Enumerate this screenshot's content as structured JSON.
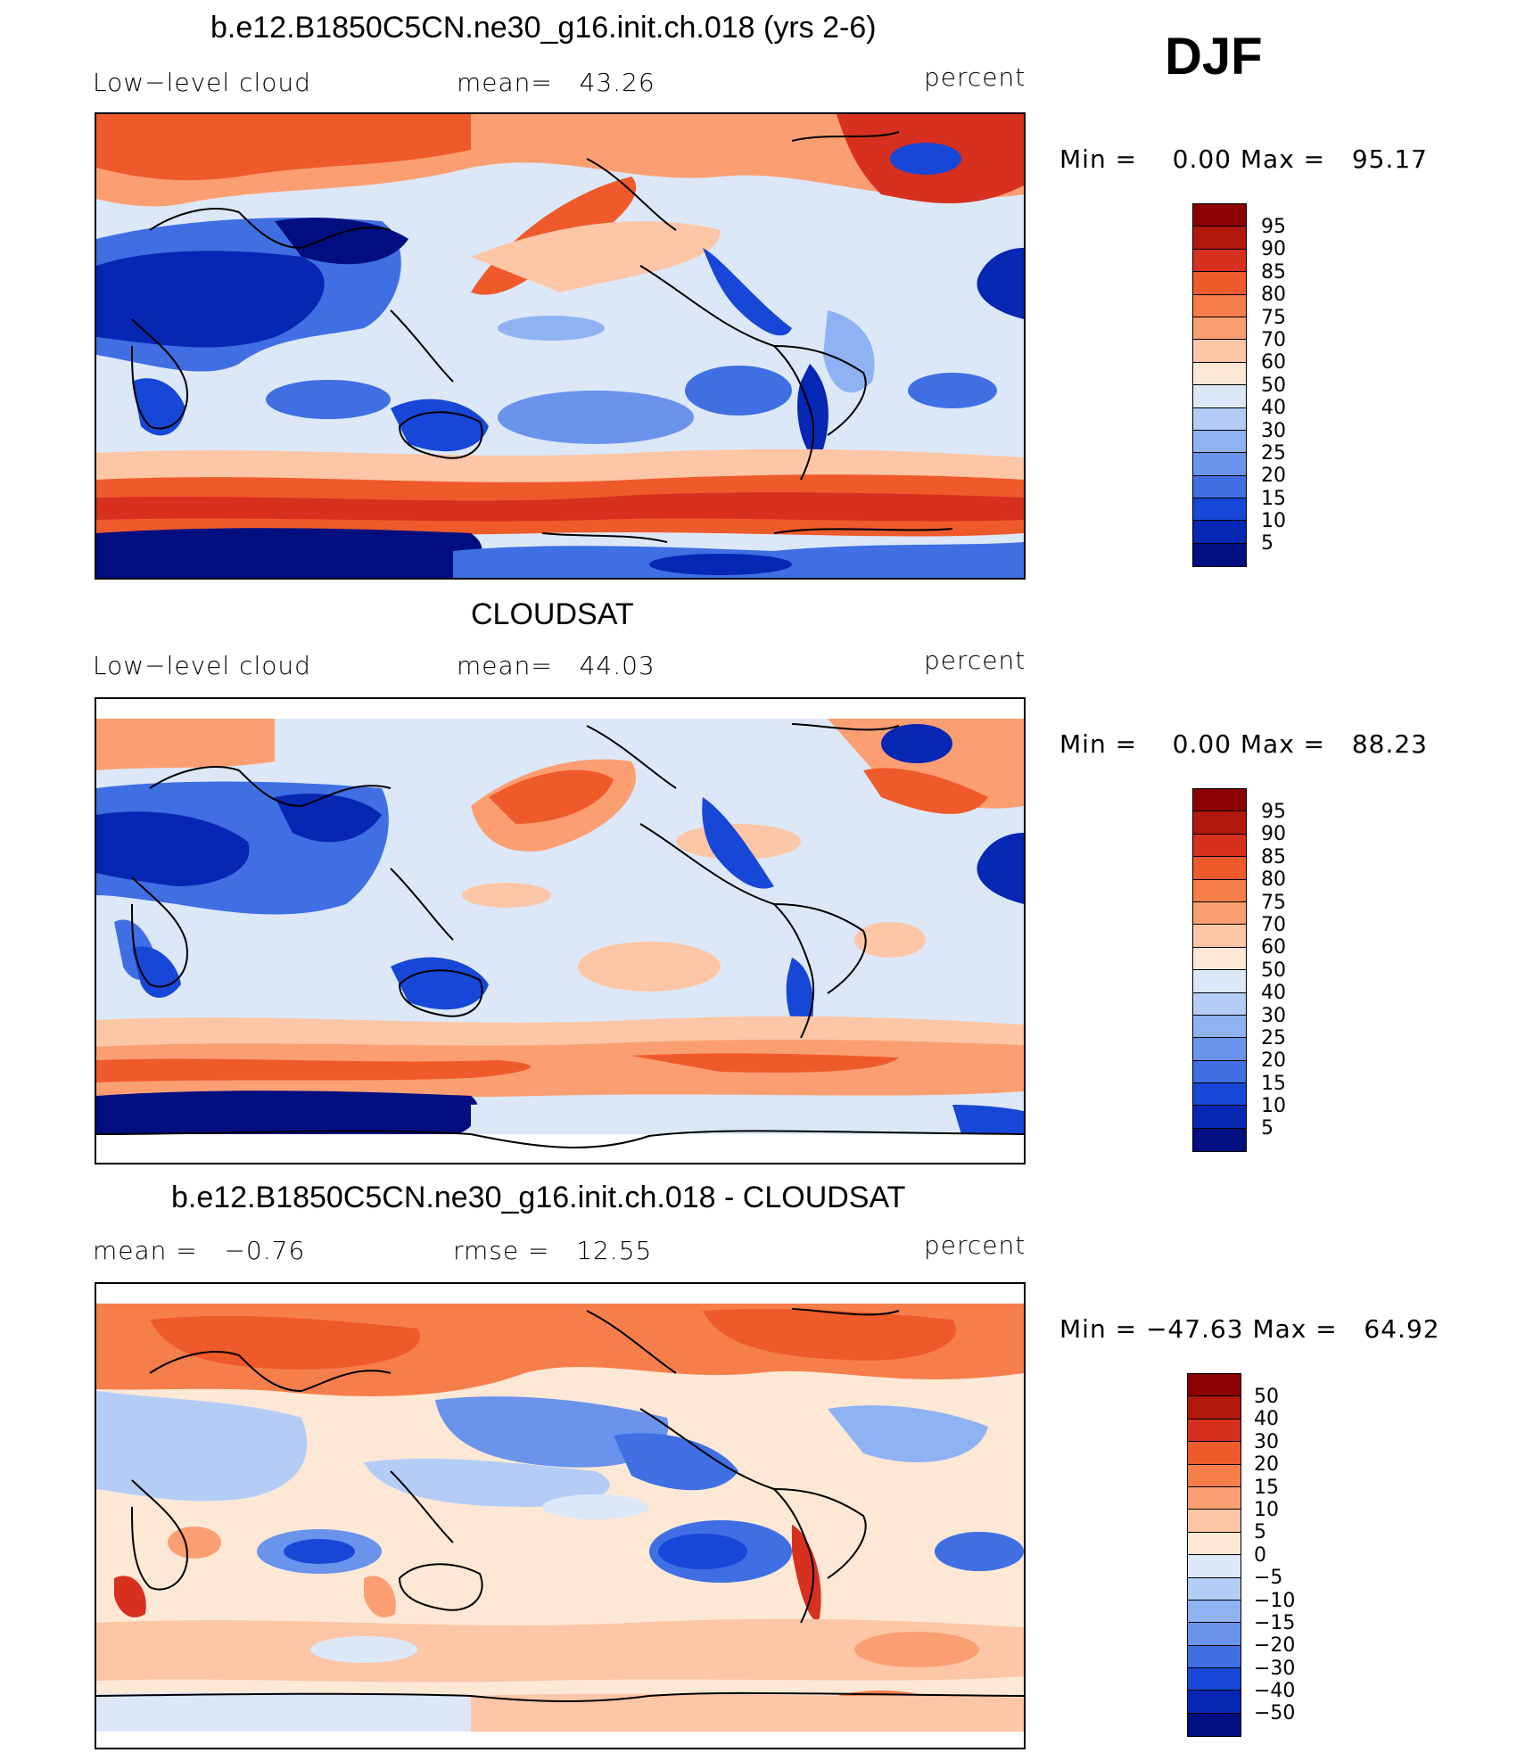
{
  "season": "DJF",
  "panels": [
    {
      "title": "b.e12.B1850C5CN.ne30_g16.init.ch.018 (yrs 2-6)",
      "left_text": "Low−level cloud",
      "mid_text": "mean=   43.26",
      "right_text": "percent",
      "minmax": "Min =    0.00 Max =   95.17",
      "min": 0.0,
      "max": 95.17,
      "mean": 43.26,
      "colorbar": {
        "labels": [
          "95",
          "90",
          "85",
          "80",
          "75",
          "70",
          "60",
          "50",
          "40",
          "30",
          "25",
          "20",
          "15",
          "10",
          "5"
        ],
        "colors": [
          "#8b0000",
          "#b2170b",
          "#d7301f",
          "#ef5a2a",
          "#f57e4b",
          "#fb9f72",
          "#fdc6a6",
          "#fde8d6",
          "#dce8f8",
          "#b3cdf7",
          "#8fb2f3",
          "#6a93ec",
          "#3f6fe3",
          "#1747d6",
          "#0626b4",
          "#000e80"
        ]
      }
    },
    {
      "title": "CLOUDSAT",
      "left_text": "Low−level cloud",
      "mid_text": "mean=   44.03",
      "right_text": "percent",
      "minmax": "Min =    0.00 Max =   88.23",
      "min": 0.0,
      "max": 88.23,
      "mean": 44.03,
      "colorbar": {
        "labels": [
          "95",
          "90",
          "85",
          "80",
          "75",
          "70",
          "60",
          "50",
          "40",
          "30",
          "25",
          "20",
          "15",
          "10",
          "5"
        ],
        "colors": [
          "#8b0000",
          "#b2170b",
          "#d7301f",
          "#ef5a2a",
          "#f57e4b",
          "#fb9f72",
          "#fdc6a6",
          "#fde8d6",
          "#dce8f8",
          "#b3cdf7",
          "#8fb2f3",
          "#6a93ec",
          "#3f6fe3",
          "#1747d6",
          "#0626b4",
          "#000e80"
        ]
      }
    },
    {
      "title": "b.e12.B1850C5CN.ne30_g16.init.ch.018 - CLOUDSAT",
      "left_text": "mean =   −0.76",
      "mid_text": "rmse =   12.55",
      "right_text": "percent",
      "minmax": "Min = −47.63 Max =   64.92",
      "min": -47.63,
      "max": 64.92,
      "mean": -0.76,
      "rmse": 12.55,
      "colorbar": {
        "labels": [
          "50",
          "40",
          "30",
          "20",
          "15",
          "10",
          "5",
          "0",
          "−5",
          "−10",
          "−15",
          "−20",
          "−30",
          "−40",
          "−50"
        ],
        "colors": [
          "#8b0000",
          "#b2170b",
          "#d7301f",
          "#ef5a2a",
          "#f57e4b",
          "#fb9f72",
          "#fdc6a6",
          "#fde8d6",
          "#dce8f8",
          "#b3cdf7",
          "#8fb2f3",
          "#6a93ec",
          "#3f6fe3",
          "#1747d6",
          "#0626b4",
          "#000e80"
        ]
      }
    }
  ]
}
